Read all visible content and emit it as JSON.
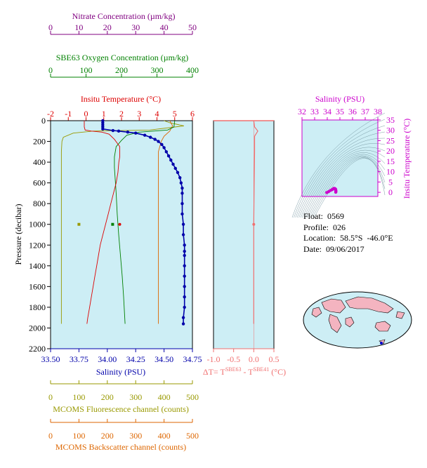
{
  "float_info": {
    "float": "Float:  0569",
    "profile": "Profile:  026",
    "location": "Location:  58.5°S  -46.0°E",
    "date": "Date:  09/06/2017"
  },
  "colors": {
    "nitrate": "#800080",
    "oxygen": "#008000",
    "temperature": "#dd0000",
    "salinity": "#0000aa",
    "fluorescence": "#999900",
    "backscatter": "#dd6600",
    "delta": "#f07070",
    "ts_axis": "#cc00cc",
    "plot_bg": "#cdeef5"
  },
  "chart_data": [
    {
      "type": "line",
      "id": "main_profile",
      "ylabel": "Pressure (decibar)",
      "ylim": [
        2200,
        0
      ],
      "yticks": [
        "0",
        "200",
        "400",
        "600",
        "800",
        "1000",
        "1200",
        "1400",
        "1600",
        "1800",
        "2000",
        "2200"
      ],
      "axes": {
        "nitrate": {
          "label": "Nitrate Concentration (µm/kg)",
          "lim": [
            0,
            50
          ],
          "ticks": [
            "0",
            "10",
            "20",
            "30",
            "40",
            "50"
          ]
        },
        "oxygen": {
          "label": "SBE63 Oxygen Concentration (µm/kg)",
          "lim": [
            0,
            400
          ],
          "ticks": [
            "0",
            "100",
            "200",
            "300",
            "400"
          ]
        },
        "temperature": {
          "label": "Insitu Temperature (°C)",
          "lim": [
            -2,
            6
          ],
          "ticks": [
            "-2",
            "-1",
            "0",
            "1",
            "2",
            "3",
            "4",
            "5",
            "6"
          ]
        },
        "salinity": {
          "label": "Salinity (PSU)",
          "lim": [
            33.5,
            34.75
          ],
          "ticks": [
            "33.50",
            "33.75",
            "34.00",
            "34.25",
            "34.50",
            "34.75"
          ]
        },
        "fluorescence": {
          "label": "MCOMS Fluorescence channel (counts)",
          "lim": [
            0,
            500
          ],
          "ticks": [
            "0",
            "100",
            "200",
            "300",
            "400",
            "500"
          ]
        },
        "backscatter": {
          "label": "MCOMS Backscatter channel (counts)",
          "lim": [
            0,
            500
          ],
          "ticks": [
            "0",
            "100",
            "200",
            "300",
            "400",
            "500"
          ]
        }
      },
      "series": [
        {
          "name": "Salinity (PSU)",
          "axis": "salinity",
          "markers": true,
          "points": [
            [
              33.96,
              0
            ],
            [
              33.96,
              20
            ],
            [
              33.96,
              40
            ],
            [
              33.96,
              60
            ],
            [
              33.96,
              80
            ],
            [
              34.05,
              95
            ],
            [
              34.1,
              100
            ],
            [
              34.18,
              110
            ],
            [
              34.25,
              120
            ],
            [
              34.33,
              140
            ],
            [
              34.38,
              160
            ],
            [
              34.42,
              180
            ],
            [
              34.45,
              200
            ],
            [
              34.48,
              230
            ],
            [
              34.5,
              260
            ],
            [
              34.52,
              300
            ],
            [
              34.54,
              340
            ],
            [
              34.56,
              380
            ],
            [
              34.58,
              420
            ],
            [
              34.6,
              460
            ],
            [
              34.62,
              500
            ],
            [
              34.64,
              550
            ],
            [
              34.65,
              600
            ],
            [
              34.66,
              650
            ],
            [
              34.66,
              700
            ],
            [
              34.66,
              800
            ],
            [
              34.66,
              900
            ],
            [
              34.67,
              1000
            ],
            [
              34.67,
              1100
            ],
            [
              34.68,
              1200
            ],
            [
              34.68,
              1260
            ],
            [
              34.68,
              1300
            ],
            [
              34.68,
              1400
            ],
            [
              34.68,
              1500
            ],
            [
              34.68,
              1600
            ],
            [
              34.68,
              1700
            ],
            [
              34.68,
              1800
            ],
            [
              34.67,
              1900
            ],
            [
              34.67,
              1960
            ]
          ]
        },
        {
          "name": "Insitu Temperature (°C)",
          "axis": "temperature",
          "points": [
            [
              -0.1,
              0
            ],
            [
              -0.1,
              60
            ],
            [
              -0.05,
              90
            ],
            [
              0.3,
              100
            ],
            [
              0.9,
              110
            ],
            [
              1.3,
              130
            ],
            [
              1.6,
              180
            ],
            [
              1.9,
              250
            ],
            [
              1.9,
              350
            ],
            [
              1.85,
              400
            ],
            [
              1.8,
              500
            ],
            [
              1.7,
              600
            ],
            [
              1.55,
              700
            ],
            [
              1.4,
              800
            ],
            [
              1.25,
              900
            ],
            [
              1.1,
              1000
            ],
            [
              0.95,
              1100
            ],
            [
              0.8,
              1200
            ],
            [
              0.7,
              1300
            ],
            [
              0.6,
              1400
            ],
            [
              0.5,
              1500
            ],
            [
              0.4,
              1600
            ],
            [
              0.3,
              1700
            ],
            [
              0.2,
              1800
            ],
            [
              0.1,
              1900
            ],
            [
              0.05,
              1960
            ]
          ]
        },
        {
          "name": "SBE63 Oxygen Concentration (µm/kg)",
          "axis": "oxygen",
          "points": [
            [
              350,
              0
            ],
            [
              348,
              60
            ],
            [
              330,
              90
            ],
            [
              250,
              110
            ],
            [
              215,
              140
            ],
            [
              200,
              190
            ],
            [
              185,
              250
            ],
            [
              180,
              350
            ],
            [
              180,
              450
            ],
            [
              182,
              550
            ],
            [
              185,
              700
            ],
            [
              188,
              900
            ],
            [
              192,
              1100
            ],
            [
              197,
              1300
            ],
            [
              202,
              1500
            ],
            [
              206,
              1700
            ],
            [
              210,
              1960
            ]
          ]
        },
        {
          "name": "Nitrate Concentration (µm/kg)",
          "axis": "nitrate",
          "points": []
        },
        {
          "name": "MCOMS Fluorescence channel (counts)",
          "axis": "fluorescence",
          "points": [
            [
              400,
              0
            ],
            [
              420,
              20
            ],
            [
              470,
              50
            ],
            [
              350,
              90
            ],
            [
              150,
              100
            ],
            [
              80,
              120
            ],
            [
              45,
              160
            ],
            [
              40,
              200
            ],
            [
              38,
              300
            ],
            [
              38,
              500
            ],
            [
              38,
              800
            ],
            [
              38,
              1000
            ],
            [
              38,
              1300
            ],
            [
              38,
              1600
            ],
            [
              38,
              1960
            ]
          ]
        },
        {
          "name": "MCOMS Backscatter channel (counts)",
          "axis": "backscatter",
          "points": [
            [
              420,
              0
            ],
            [
              430,
              50
            ],
            [
              420,
              100
            ],
            [
              400,
              150
            ],
            [
              390,
              200
            ],
            [
              380,
              300
            ],
            [
              380,
              500
            ],
            [
              380,
              800
            ],
            [
              380,
              1100
            ],
            [
              380,
              1400
            ],
            [
              380,
              1700
            ],
            [
              380,
              1960
            ]
          ]
        }
      ],
      "bottle_points": {
        "pressure": 1000,
        "nitrate": 10,
        "oxygen": 175,
        "temperature": 1.9
      }
    },
    {
      "type": "line",
      "id": "delta_t",
      "xlabel": "ΔT= T SBE63 - T SBE41 (°C)",
      "xlim": [
        -1.0,
        0.5
      ],
      "xticks": [
        "-1.0",
        "-0.5",
        "0.0",
        "0.5"
      ],
      "ylim": [
        2200,
        0
      ],
      "series": [
        {
          "name": "ΔT",
          "points": [
            [
              0.0,
              0
            ],
            [
              0.02,
              60
            ],
            [
              0.1,
              100
            ],
            [
              0.02,
              150
            ],
            [
              0.02,
              300
            ],
            [
              0.01,
              600
            ],
            [
              0.0,
              1000
            ],
            [
              0.0,
              1400
            ],
            [
              0.0,
              1960
            ]
          ]
        }
      ]
    },
    {
      "type": "scatter",
      "id": "ts_diagram",
      "xlabel": "Salinity (PSU)",
      "ylabel": "Insitu Temperature (°C)",
      "xlim": [
        32,
        38
      ],
      "ylim": [
        -2,
        35
      ],
      "xticks": [
        "32",
        "33",
        "34",
        "35",
        "36",
        "37",
        "38"
      ],
      "yticks": [
        "0",
        "5",
        "10",
        "15",
        "20",
        "25",
        "30",
        "35"
      ],
      "points": [
        [
          33.96,
          -0.1
        ],
        [
          34.1,
          0.3
        ],
        [
          34.25,
          0.9
        ],
        [
          34.38,
          1.3
        ],
        [
          34.45,
          1.6
        ],
        [
          34.52,
          1.9
        ],
        [
          34.6,
          1.85
        ],
        [
          34.66,
          1.5
        ],
        [
          34.67,
          1.1
        ],
        [
          34.68,
          0.7
        ],
        [
          34.68,
          0.3
        ],
        [
          34.67,
          0.05
        ]
      ]
    }
  ]
}
